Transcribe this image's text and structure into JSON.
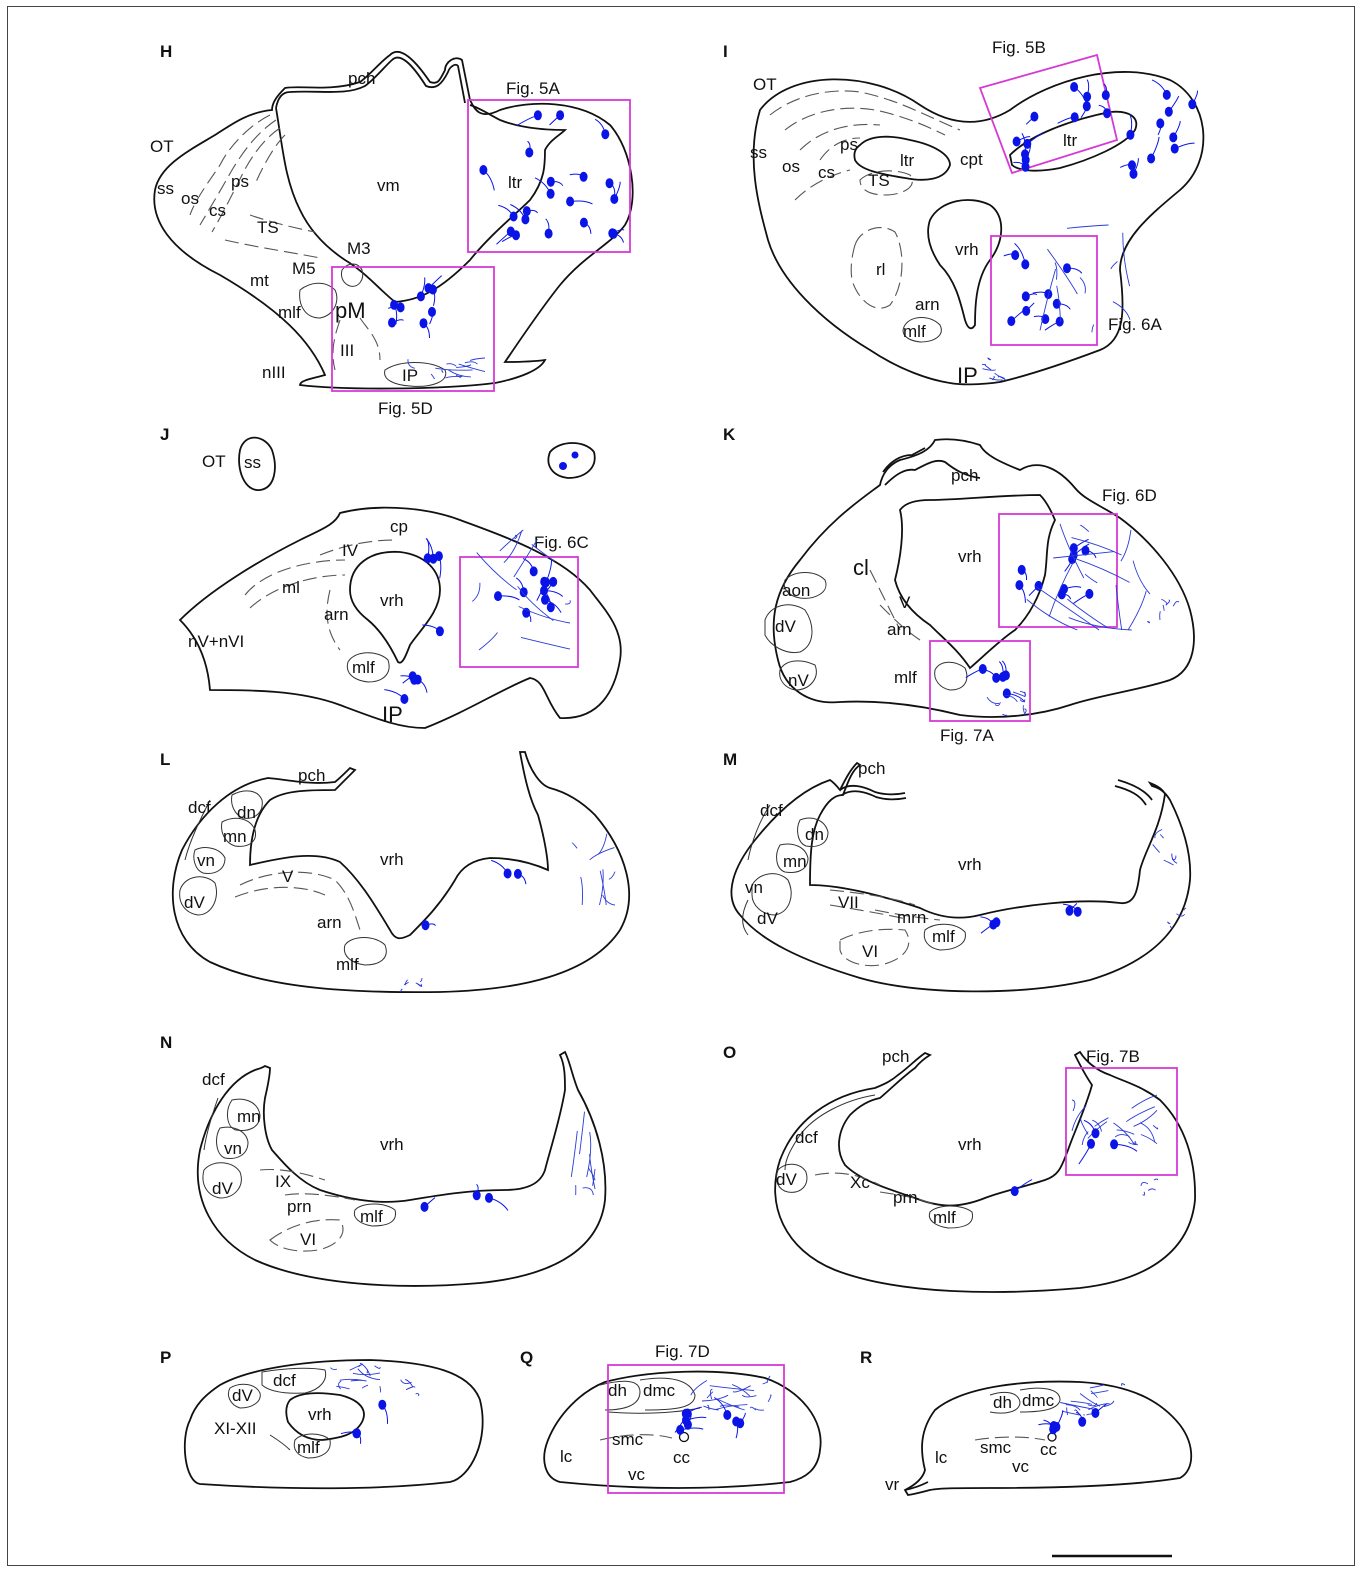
{
  "colors": {
    "neuron": "#0a14e6",
    "fiber": "#2a3ad8",
    "box": "#d63ad6",
    "outline": "#111111"
  },
  "panels": {
    "H": {
      "letter": "H",
      "labels": {
        "pch": "pch",
        "OT": "OT",
        "ss": "ss",
        "os": "os",
        "ps": "ps",
        "cs": "cs",
        "vm": "vm",
        "TS": "TS",
        "M3": "M3",
        "M5": "M5",
        "mt": "mt",
        "mlf": "mlf",
        "pM": "pM",
        "III": "III",
        "nIII": "nIII",
        "IP": "IP",
        "ltr": "ltr"
      },
      "boxes": {
        "a": "Fig. 5A",
        "b": "Fig. 5D"
      }
    },
    "I": {
      "letter": "I",
      "labels": {
        "OT": "OT",
        "ss": "ss",
        "os": "os",
        "ps": "ps",
        "cs": "cs",
        "ltr1": "ltr",
        "TS": "TS",
        "cpt": "cpt",
        "ltr2": "ltr",
        "vrh": "vrh",
        "rl": "rl",
        "arn": "arn",
        "mlf": "mlf",
        "IP": "IP"
      },
      "boxes": {
        "a": "Fig. 5B",
        "b": "Fig. 6A"
      }
    },
    "J": {
      "letter": "J",
      "labels": {
        "OT": "OT",
        "ss": "ss",
        "cp": "cp",
        "IV": "IV",
        "ml": "ml",
        "vrh": "vrh",
        "arn": "arn",
        "nVnVI": "nV+nVI",
        "mlf": "mlf",
        "IP": "IP"
      },
      "boxes": {
        "a": "Fig. 6C"
      }
    },
    "K": {
      "letter": "K",
      "labels": {
        "pch": "pch",
        "vrh": "vrh",
        "cl": "cl",
        "aon": "aon",
        "dV": "dV",
        "V": "V",
        "arn": "arn",
        "nV": "nV",
        "mlf": "mlf"
      },
      "boxes": {
        "a": "Fig. 6D",
        "b": "Fig. 7A"
      }
    },
    "L": {
      "letter": "L",
      "labels": {
        "pch": "pch",
        "dcf": "dcf",
        "dn": "dn",
        "mn": "mn",
        "vn": "vn",
        "dV": "dV",
        "V": "V",
        "vrh": "vrh",
        "arn": "arn",
        "mlf": "mlf"
      }
    },
    "M": {
      "letter": "M",
      "labels": {
        "pch": "pch",
        "dcf": "dcf",
        "dn": "dn",
        "mn": "mn",
        "vn": "vn",
        "dV": "dV",
        "VII": "VII",
        "mrn": "mrn",
        "mlf": "mlf",
        "VI": "VI",
        "vrh": "vrh"
      }
    },
    "N": {
      "letter": "N",
      "labels": {
        "dcf": "dcf",
        "mn": "mn",
        "vn": "vn",
        "dV": "dV",
        "IX": "IX",
        "prn": "prn",
        "mlf": "mlf",
        "VI": "VI",
        "vrh": "vrh"
      }
    },
    "O": {
      "letter": "O",
      "labels": {
        "pch": "pch",
        "dcf": "dcf",
        "dV": "dV",
        "Xc": "Xc",
        "prn": "prn",
        "mlf": "mlf",
        "vrh": "vrh"
      },
      "boxes": {
        "a": "Fig. 7B"
      }
    },
    "P": {
      "letter": "P",
      "labels": {
        "dV": "dV",
        "dcf": "dcf",
        "vrh": "vrh",
        "XIXII": "XI-XII",
        "mlf": "mlf"
      }
    },
    "Q": {
      "letter": "Q",
      "labels": {
        "dh": "dh",
        "dmc": "dmc",
        "smc": "smc",
        "lc": "lc",
        "cc": "cc",
        "vc": "vc"
      },
      "boxes": {
        "a": "Fig. 7D"
      }
    },
    "R": {
      "letter": "R",
      "labels": {
        "dh": "dh",
        "dmc": "dmc",
        "lc": "lc",
        "smc": "smc",
        "cc": "cc",
        "vc": "vc",
        "vr": "vr"
      }
    }
  }
}
